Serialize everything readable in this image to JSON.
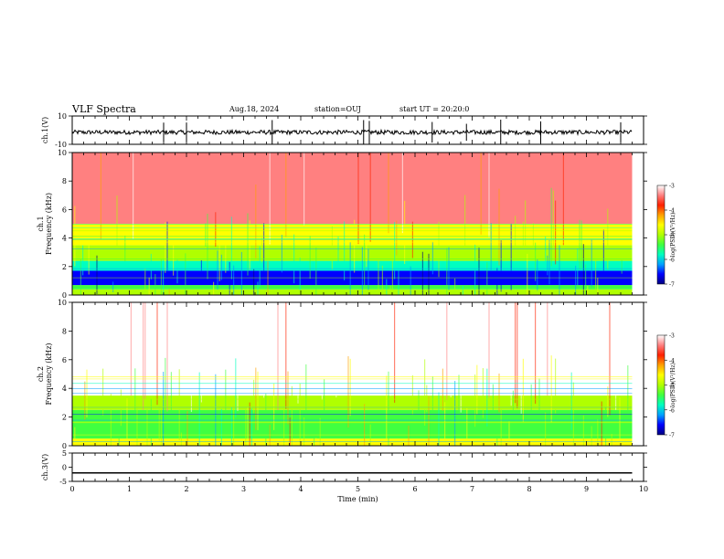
{
  "header": {
    "title": "VLF Spectra",
    "date": "Aug.18, 2024",
    "station": "station=OUJ",
    "start_ut": "start UT = 20:20:0"
  },
  "colorbar": {
    "label": "log(PSD)(V²/Hz)",
    "ticks": [
      "-3",
      "-4",
      "-5",
      "-6",
      "-7"
    ],
    "colors": [
      "#000080",
      "#0000ff",
      "#00a0ff",
      "#00ffc0",
      "#40ff40",
      "#b0ff00",
      "#ffff00",
      "#ffa000",
      "#ff2000",
      "#ff8080",
      "#ffffff"
    ]
  },
  "chart_data": [
    {
      "type": "line",
      "name": "ch1-waveform",
      "ylabel": "ch.1(V)",
      "ylim": [
        -10,
        10
      ],
      "yticks": [
        "10",
        "-10"
      ],
      "x_range": [
        0,
        9.8
      ],
      "baseline": -1.5,
      "noise_amplitude": 1.5,
      "spike_times": [
        1.6,
        2.0,
        3.5,
        5.1,
        5.2,
        6.3,
        6.9,
        7.5,
        8.2,
        9.6
      ],
      "spike_amplitude": 9
    },
    {
      "type": "heatmap",
      "name": "ch1-spectrogram",
      "ylabel": "ch.1 Frequency (kHz)",
      "ylim": [
        0,
        10
      ],
      "yticks": [
        "0",
        "2",
        "4",
        "6",
        "8",
        "10"
      ],
      "x_range": [
        0,
        9.8
      ],
      "psd_range": [
        -7,
        -3
      ],
      "bands": [
        {
          "from_khz": 0.0,
          "to_khz": 0.4,
          "log_psd": -5.0
        },
        {
          "from_khz": 0.4,
          "to_khz": 0.7,
          "log_psd": -5.5
        },
        {
          "from_khz": 0.7,
          "to_khz": 1.7,
          "log_psd": -6.8
        },
        {
          "from_khz": 1.7,
          "to_khz": 2.4,
          "log_psd": -5.8
        },
        {
          "from_khz": 2.4,
          "to_khz": 3.5,
          "log_psd": -5.2
        },
        {
          "from_khz": 3.5,
          "to_khz": 5.0,
          "log_psd": -4.6
        },
        {
          "from_khz": 5.0,
          "to_khz": 10.0,
          "log_psd": -3.6
        }
      ]
    },
    {
      "type": "heatmap",
      "name": "ch2-spectrogram",
      "ylabel": "ch.2 Frequency (kHz)",
      "ylim": [
        0,
        10
      ],
      "yticks": [
        "0",
        "2",
        "4",
        "6",
        "8",
        "10"
      ],
      "x_range": [
        0,
        9.8
      ],
      "psd_range": [
        -7,
        -3
      ],
      "bands": [
        {
          "from_khz": 0.0,
          "to_khz": 0.5,
          "log_psd": -4.6
        },
        {
          "from_khz": 0.5,
          "to_khz": 2.5,
          "log_psd": -5.4
        },
        {
          "from_khz": 2.5,
          "to_khz": 3.5,
          "log_psd": -4.9
        },
        {
          "from_khz": 3.5,
          "to_khz": 10.0,
          "log_psd": -3.1
        }
      ]
    },
    {
      "type": "line",
      "name": "ch3-waveform",
      "ylabel": "ch.3(V)",
      "ylim": [
        -5,
        5
      ],
      "yticks": [
        "5",
        "0",
        "-5"
      ],
      "x_range": [
        0,
        9.8
      ],
      "baseline": -2
    }
  ],
  "xaxis": {
    "label": "Time (min)",
    "ticks": [
      "0",
      "1",
      "2",
      "3",
      "4",
      "5",
      "6",
      "7",
      "8",
      "9",
      "10"
    ],
    "xlim": [
      0,
      10
    ]
  }
}
